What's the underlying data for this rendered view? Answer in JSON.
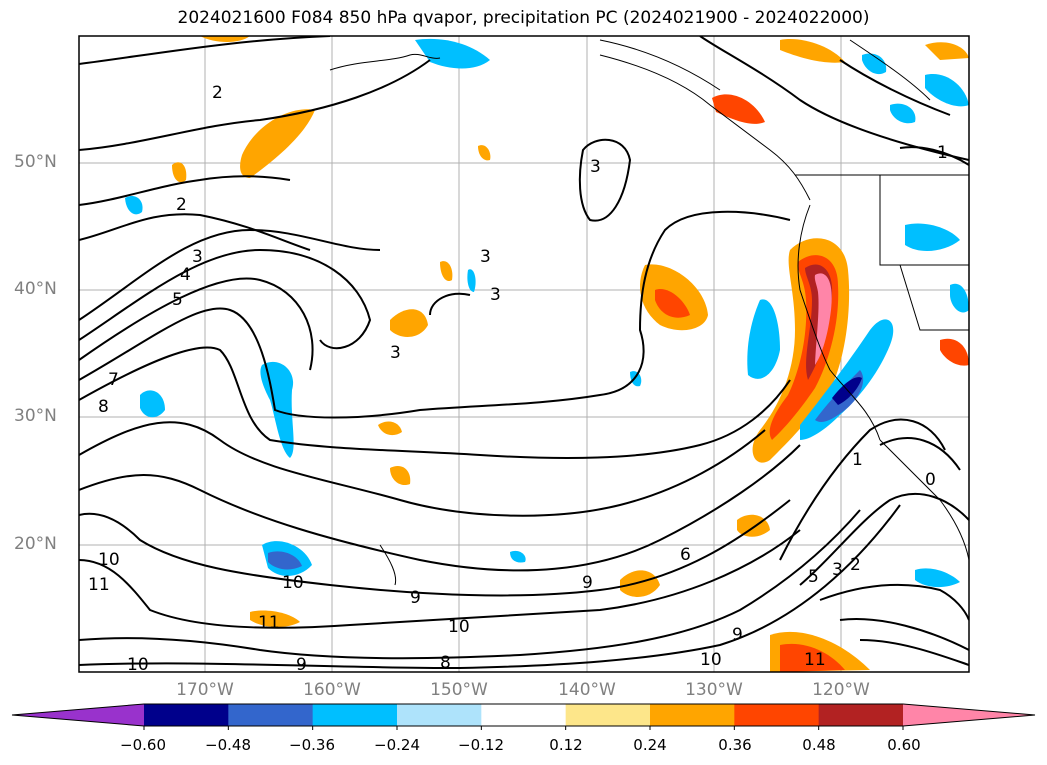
{
  "title": "2024021600 F084 850 hPa qvapor, precipitation PC (2024021900 - 2024022000)",
  "lat_labels": [
    "50°N",
    "40°N",
    "30°N",
    "20°N"
  ],
  "lon_labels": [
    "170°W",
    "160°W",
    "150°W",
    "140°W",
    "130°W",
    "120°W"
  ],
  "colorbar": {
    "ticks": [
      "−0.60",
      "−0.48",
      "−0.36",
      "−0.24",
      "−0.12",
      "0.12",
      "0.24",
      "0.36",
      "0.48",
      "0.60"
    ],
    "colors": [
      "#9932cc",
      "#00008b",
      "#3366cc",
      "#00bfff",
      "#aee3fb",
      "#ffffff",
      "#fde68a",
      "#ffa500",
      "#ff4500",
      "#b22222",
      "#ff85a8"
    ]
  },
  "contour_labels": [
    "2",
    "2",
    "3",
    "3",
    "3",
    "3",
    "3",
    "4",
    "5",
    "7",
    "8",
    "10",
    "10",
    "11",
    "11",
    "9",
    "9",
    "9",
    "10",
    "10",
    "8",
    "6",
    "5",
    "3",
    "2",
    "1",
    "1",
    "0",
    "11"
  ]
}
